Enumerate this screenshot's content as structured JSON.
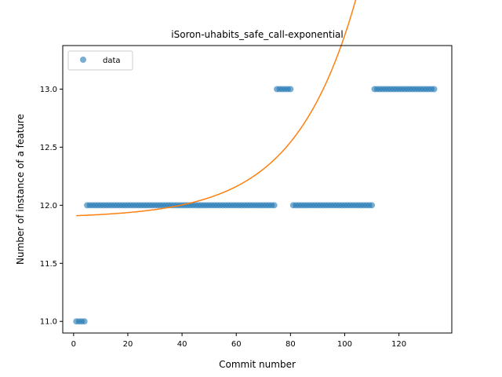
{
  "chart_data": {
    "type": "scatter",
    "title": "iSoron-uhabits_safe_call-exponential",
    "xlabel": "Commit number",
    "ylabel": "Number of instance of a feature",
    "xlim": [
      -4,
      139.5
    ],
    "ylim": [
      10.9,
      13.375
    ],
    "xticks": [
      0,
      20,
      40,
      60,
      80,
      100,
      120
    ],
    "yticks": [
      11.0,
      11.5,
      12.0,
      12.5,
      13.0
    ],
    "ytick_labels": [
      "11.0",
      "11.5",
      "12.0",
      "12.5",
      "13.0"
    ],
    "grid": false,
    "legend": {
      "position": "top-left",
      "entries": [
        "data"
      ]
    },
    "colors": {
      "data": "#1f77b4",
      "fit": "#ff7f0e"
    },
    "series": [
      {
        "name": "data",
        "kind": "scatter",
        "segments": [
          {
            "x_start": 1,
            "x_end": 4,
            "y": 11.0
          },
          {
            "x_start": 5,
            "x_end": 74,
            "y": 12.0
          },
          {
            "x_start": 75,
            "x_end": 80,
            "y": 13.0
          },
          {
            "x_start": 81,
            "x_end": 110,
            "y": 12.0
          },
          {
            "x_start": 111,
            "x_end": 133,
            "y": 13.0
          }
        ]
      },
      {
        "kind": "line",
        "model": "exponential",
        "params": {
          "a": 0.0195,
          "b": 0.0439,
          "c": 11.89
        },
        "x_range": [
          1,
          133
        ]
      }
    ]
  }
}
